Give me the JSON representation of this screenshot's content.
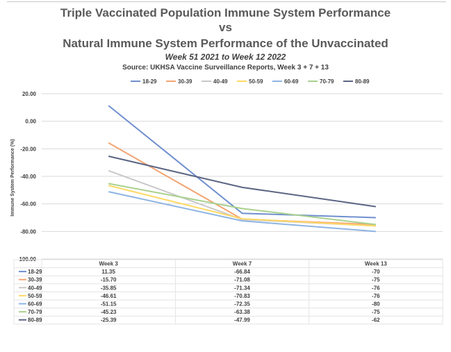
{
  "title": {
    "line1": "Triple Vaccinated Population Immune System Performance",
    "line2": "vs",
    "line3": "Natural Immune System Performance of the Unvaccinated",
    "subtitle": "Week 51 2021 to Week 12 2022",
    "source": "Source: UKHSA Vaccine Surveillance Reports, Week 3 + 7 + 13"
  },
  "chart_data": {
    "type": "line",
    "ylabel": "Immune System Performance (%)",
    "ylim": [
      -100,
      20
    ],
    "yticks": [
      "20.00",
      "0.00",
      "-20.00",
      "-40.00",
      "-60.00",
      "-80.00",
      "-100.00"
    ],
    "categories": [
      "Week 3",
      "Week 7",
      "Week 13"
    ],
    "legend_position": "top",
    "grid": true,
    "series": [
      {
        "name": "18-29",
        "color": "#6f8fce",
        "values": [
          11.35,
          -66.84,
          -70
        ],
        "labels": [
          "11.35",
          "-66.84",
          "-70"
        ]
      },
      {
        "name": "30-39",
        "color": "#f4a473",
        "values": [
          -15.7,
          -71.08,
          -75
        ],
        "labels": [
          "-15.70",
          "-71.08",
          "-75"
        ]
      },
      {
        "name": "40-49",
        "color": "#c8c8c8",
        "values": [
          -35.85,
          -71.34,
          -76
        ],
        "labels": [
          "-35.85",
          "-71.34",
          "-76"
        ]
      },
      {
        "name": "50-59",
        "color": "#ffd966",
        "values": [
          -46.61,
          -70.83,
          -76
        ],
        "labels": [
          "-46.61",
          "-70.83",
          "-76"
        ]
      },
      {
        "name": "60-69",
        "color": "#8eb4e3",
        "values": [
          -51.15,
          -72.35,
          -80
        ],
        "labels": [
          "-51.15",
          "-72.35",
          "-80"
        ]
      },
      {
        "name": "70-79",
        "color": "#a9d18e",
        "values": [
          -45.23,
          -63.38,
          -75
        ],
        "labels": [
          "-45.23",
          "-63.38",
          "-75"
        ]
      },
      {
        "name": "80-89",
        "color": "#5b6483",
        "values": [
          -25.39,
          -47.99,
          -62
        ],
        "labels": [
          "-25.39",
          "-47.99",
          "-62"
        ]
      }
    ]
  }
}
